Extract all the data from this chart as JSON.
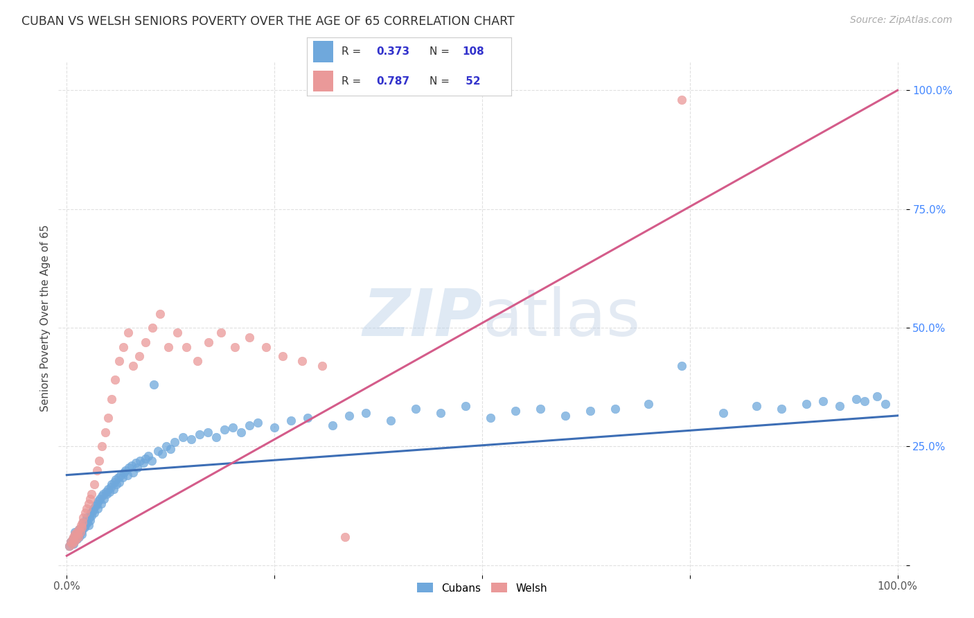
{
  "title": "CUBAN VS WELSH SENIORS POVERTY OVER THE AGE OF 65 CORRELATION CHART",
  "source": "Source: ZipAtlas.com",
  "ylabel": "Seniors Poverty Over the Age of 65",
  "cubans_R": 0.373,
  "cubans_N": 108,
  "welsh_R": 0.787,
  "welsh_N": 52,
  "cubans_color": "#6fa8dc",
  "welsh_color": "#ea9999",
  "cubans_line_color": "#3d6eb5",
  "welsh_line_color": "#d45c8a",
  "legend_text_color": "#3333cc",
  "tick_color_y": "#4488ff",
  "background_color": "#ffffff",
  "grid_color": "#e0e0e0",
  "title_color": "#333333",
  "source_color": "#aaaaaa",
  "cubans_trend": [
    0.19,
    0.315
  ],
  "welsh_trend": [
    0.02,
    1.0
  ],
  "xlim": [
    -0.01,
    1.01
  ],
  "ylim": [
    -0.02,
    1.06
  ],
  "cubans_x": [
    0.003,
    0.005,
    0.007,
    0.008,
    0.01,
    0.01,
    0.012,
    0.013,
    0.015,
    0.015,
    0.017,
    0.018,
    0.018,
    0.019,
    0.02,
    0.021,
    0.022,
    0.023,
    0.024,
    0.025,
    0.026,
    0.027,
    0.028,
    0.029,
    0.03,
    0.031,
    0.032,
    0.033,
    0.035,
    0.036,
    0.037,
    0.038,
    0.04,
    0.041,
    0.042,
    0.044,
    0.045,
    0.047,
    0.048,
    0.05,
    0.051,
    0.053,
    0.054,
    0.056,
    0.057,
    0.059,
    0.06,
    0.062,
    0.063,
    0.065,
    0.067,
    0.069,
    0.071,
    0.073,
    0.075,
    0.078,
    0.08,
    0.083,
    0.085,
    0.088,
    0.092,
    0.095,
    0.098,
    0.102,
    0.105,
    0.11,
    0.115,
    0.12,
    0.125,
    0.13,
    0.14,
    0.15,
    0.16,
    0.17,
    0.18,
    0.19,
    0.2,
    0.21,
    0.22,
    0.23,
    0.25,
    0.27,
    0.29,
    0.32,
    0.34,
    0.36,
    0.39,
    0.42,
    0.45,
    0.48,
    0.51,
    0.54,
    0.57,
    0.6,
    0.63,
    0.66,
    0.7,
    0.74,
    0.79,
    0.83,
    0.86,
    0.89,
    0.91,
    0.93,
    0.95,
    0.96,
    0.975,
    0.985
  ],
  "cubans_y": [
    0.04,
    0.05,
    0.055,
    0.045,
    0.06,
    0.07,
    0.055,
    0.065,
    0.06,
    0.075,
    0.07,
    0.065,
    0.08,
    0.075,
    0.09,
    0.08,
    0.085,
    0.095,
    0.1,
    0.09,
    0.085,
    0.1,
    0.095,
    0.11,
    0.105,
    0.115,
    0.12,
    0.11,
    0.125,
    0.13,
    0.12,
    0.135,
    0.14,
    0.13,
    0.145,
    0.15,
    0.14,
    0.155,
    0.15,
    0.16,
    0.155,
    0.165,
    0.17,
    0.16,
    0.175,
    0.18,
    0.17,
    0.185,
    0.175,
    0.19,
    0.185,
    0.195,
    0.2,
    0.19,
    0.205,
    0.21,
    0.195,
    0.215,
    0.205,
    0.22,
    0.215,
    0.225,
    0.23,
    0.22,
    0.38,
    0.24,
    0.235,
    0.25,
    0.245,
    0.26,
    0.27,
    0.265,
    0.275,
    0.28,
    0.27,
    0.285,
    0.29,
    0.28,
    0.295,
    0.3,
    0.29,
    0.305,
    0.31,
    0.295,
    0.315,
    0.32,
    0.305,
    0.33,
    0.32,
    0.335,
    0.31,
    0.325,
    0.33,
    0.315,
    0.325,
    0.33,
    0.34,
    0.42,
    0.32,
    0.335,
    0.33,
    0.34,
    0.345,
    0.335,
    0.35,
    0.345,
    0.355,
    0.34
  ],
  "welsh_x": [
    0.003,
    0.005,
    0.006,
    0.007,
    0.008,
    0.009,
    0.01,
    0.011,
    0.012,
    0.013,
    0.014,
    0.015,
    0.016,
    0.017,
    0.018,
    0.019,
    0.02,
    0.022,
    0.024,
    0.026,
    0.028,
    0.03,
    0.033,
    0.036,
    0.039,
    0.042,
    0.046,
    0.05,
    0.054,
    0.058,
    0.063,
    0.068,
    0.074,
    0.08,
    0.087,
    0.095,
    0.103,
    0.112,
    0.122,
    0.133,
    0.144,
    0.157,
    0.171,
    0.186,
    0.202,
    0.22,
    0.24,
    0.26,
    0.283,
    0.307,
    0.335,
    0.74
  ],
  "welsh_y": [
    0.04,
    0.05,
    0.045,
    0.055,
    0.06,
    0.05,
    0.065,
    0.055,
    0.07,
    0.065,
    0.06,
    0.075,
    0.07,
    0.085,
    0.08,
    0.09,
    0.1,
    0.11,
    0.12,
    0.13,
    0.14,
    0.15,
    0.17,
    0.2,
    0.22,
    0.25,
    0.28,
    0.31,
    0.35,
    0.39,
    0.43,
    0.46,
    0.49,
    0.42,
    0.44,
    0.47,
    0.5,
    0.53,
    0.46,
    0.49,
    0.46,
    0.43,
    0.47,
    0.49,
    0.46,
    0.48,
    0.46,
    0.44,
    0.43,
    0.42,
    0.06,
    0.98
  ]
}
